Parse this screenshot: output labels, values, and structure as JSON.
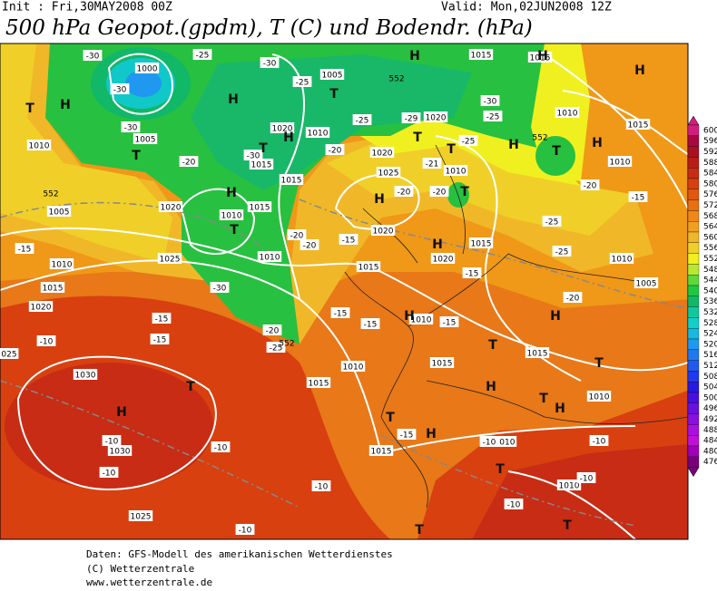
{
  "header": {
    "init": "Init : Fri,30MAY2008 00Z",
    "valid": "Valid: Mon,02JUN2008 12Z",
    "title": "500 hPa Geopot.(gpdm), T (C) und Bodendr. (hPa)"
  },
  "legend": {
    "levels": [
      {
        "value": 600,
        "color": "#d0207c"
      },
      {
        "value": 596,
        "color": "#a80840"
      },
      {
        "value": 592,
        "color": "#a81020"
      },
      {
        "value": 588,
        "color": "#b81c18"
      },
      {
        "value": 584,
        "color": "#c82c14"
      },
      {
        "value": 580,
        "color": "#d84010"
      },
      {
        "value": 576,
        "color": "#e05810"
      },
      {
        "value": 572,
        "color": "#e87010"
      },
      {
        "value": 568,
        "color": "#f08818"
      },
      {
        "value": 564,
        "color": "#f0a020"
      },
      {
        "value": 560,
        "color": "#f0b828"
      },
      {
        "value": 556,
        "color": "#f0d028"
      },
      {
        "value": 552,
        "color": "#f0f020"
      },
      {
        "value": 548,
        "color": "#b8e830"
      },
      {
        "value": 544,
        "color": "#60d838"
      },
      {
        "value": 540,
        "color": "#20c840"
      },
      {
        "value": 536,
        "color": "#10b868"
      },
      {
        "value": 532,
        "color": "#10c8a0"
      },
      {
        "value": 528,
        "color": "#10d0c8"
      },
      {
        "value": 524,
        "color": "#18b8e0"
      },
      {
        "value": 520,
        "color": "#2098f0"
      },
      {
        "value": 516,
        "color": "#2078f0"
      },
      {
        "value": 512,
        "color": "#2058f0"
      },
      {
        "value": 508,
        "color": "#2038f0"
      },
      {
        "value": 504,
        "color": "#2818e0"
      },
      {
        "value": 500,
        "color": "#4810e0"
      },
      {
        "value": 496,
        "color": "#6810e0"
      },
      {
        "value": 492,
        "color": "#8810e0"
      },
      {
        "value": 488,
        "color": "#a810e0"
      },
      {
        "value": 484,
        "color": "#c010d8"
      },
      {
        "value": 480,
        "color": "#a000b8"
      },
      {
        "value": 476,
        "color": "#780078"
      }
    ]
  },
  "map": {
    "pressure_labels": [
      "1000",
      "1005",
      "1015",
      "1015",
      "1010",
      "1020",
      "1020",
      "1010",
      "1005",
      "1015",
      "1015",
      "1010",
      "1020",
      "1025",
      "1010",
      "1010",
      "1015",
      "1005",
      "1020",
      "1010",
      "1015",
      "1020",
      "1015",
      "1010",
      "1025",
      "1010",
      "1020",
      "1015",
      "1015",
      "1010",
      "1005",
      "1020",
      "1010",
      "1015",
      "1010",
      "1015",
      "1015",
      "1010",
      "025",
      "1030",
      "1030",
      "1015",
      "1010",
      "1010",
      "1025"
    ],
    "temperature_labels": [
      "-30",
      "-30",
      "-30",
      "-25",
      "-30",
      "-25",
      "-25",
      "-20",
      "-30",
      "-20",
      "-29",
      "-30",
      "-25",
      "-25",
      "-21",
      "-20",
      "-20",
      "-20",
      "-15",
      "-25",
      "-25",
      "-15",
      "-20",
      "-20",
      "-15",
      "-15",
      "-20",
      "-30",
      "-15",
      "-15",
      "-15",
      "-15",
      "-15",
      "-20",
      "-25",
      "-10",
      "-15",
      "-10",
      "-10",
      "-10",
      "-10",
      "-10",
      "-10",
      "-10",
      "-10",
      "-10"
    ],
    "centers": [
      "H",
      "T",
      "H",
      "T",
      "H",
      "T",
      "T",
      "H",
      "T",
      "T",
      "H",
      "H",
      "H",
      "H",
      "H",
      "H",
      "T",
      "H",
      "T",
      "T",
      "H",
      "T",
      "H",
      "T",
      "H",
      "T",
      "T",
      "H",
      "T",
      "H",
      "T",
      "T",
      "T",
      "H"
    ],
    "contour_labels": [
      "552",
      "552",
      "552",
      "552"
    ]
  },
  "footer": [
    "Daten: GFS-Modell des amerikanischen Wetterdienstes",
    "(C) Wetterzentrale",
    "www.wetterzentrale.de"
  ]
}
